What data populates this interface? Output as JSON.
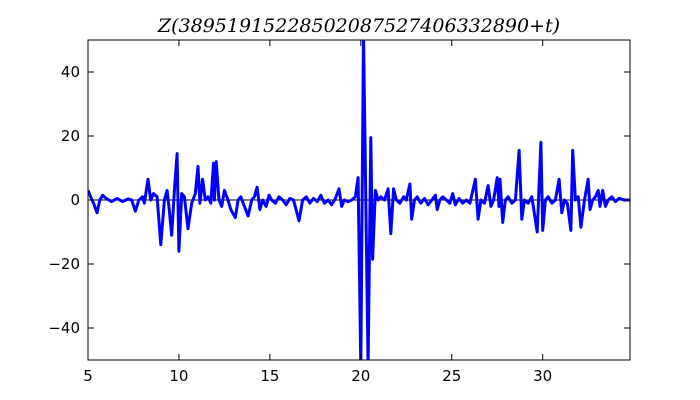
{
  "chart_data": {
    "type": "line",
    "title": "Z(389519152285020875274063328​90 + t)",
    "title_text": "Z(38951915228502087527406332890+t)",
    "xlabel": "",
    "ylabel": "",
    "xlim": [
      5,
      34.8
    ],
    "ylim": [
      -50,
      50
    ],
    "xticks": [
      5,
      10,
      15,
      20,
      25,
      30
    ],
    "yticks": [
      -40,
      -20,
      0,
      20,
      40
    ],
    "xtick_labels": [
      "5",
      "10",
      "15",
      "20",
      "25",
      "30"
    ],
    "ytick_labels": [
      "−40",
      "−20",
      "0",
      "20",
      "40"
    ],
    "grid": false,
    "zero_line": true,
    "colors": {
      "line": "#0000ff",
      "zero_line": "#000000"
    },
    "series": [
      {
        "points": [
          [
            5.0,
            3
          ],
          [
            5.15,
            1
          ],
          [
            5.3,
            -1
          ],
          [
            5.5,
            -4
          ],
          [
            5.65,
            0
          ],
          [
            5.8,
            1.5
          ],
          [
            6.0,
            0.5
          ],
          [
            6.3,
            -0.5
          ],
          [
            6.6,
            0.5
          ],
          [
            6.9,
            -0.5
          ],
          [
            7.2,
            0.3
          ],
          [
            7.4,
            0
          ],
          [
            7.6,
            -3.5
          ],
          [
            7.8,
            0
          ],
          [
            8.0,
            1
          ],
          [
            8.1,
            -1
          ],
          [
            8.3,
            6.5
          ],
          [
            8.45,
            0
          ],
          [
            8.6,
            2
          ],
          [
            8.8,
            1
          ],
          [
            9.0,
            -14
          ],
          [
            9.2,
            0
          ],
          [
            9.35,
            3
          ],
          [
            9.45,
            -2
          ],
          [
            9.6,
            -11
          ],
          [
            9.75,
            3
          ],
          [
            9.9,
            14.5
          ],
          [
            10.0,
            -16
          ],
          [
            10.15,
            2
          ],
          [
            10.3,
            1
          ],
          [
            10.5,
            -9
          ],
          [
            10.7,
            -1
          ],
          [
            10.9,
            2
          ],
          [
            11.05,
            10.5
          ],
          [
            11.15,
            -1
          ],
          [
            11.3,
            6.5
          ],
          [
            11.45,
            0
          ],
          [
            11.6,
            1
          ],
          [
            11.75,
            -1
          ],
          [
            11.9,
            11.5
          ],
          [
            11.95,
            0
          ],
          [
            12.05,
            12
          ],
          [
            12.2,
            0
          ],
          [
            12.35,
            -2
          ],
          [
            12.5,
            3
          ],
          [
            12.7,
            0
          ],
          [
            12.85,
            -3
          ],
          [
            13.1,
            -5.5
          ],
          [
            13.25,
            0
          ],
          [
            13.4,
            1
          ],
          [
            13.6,
            -2
          ],
          [
            13.8,
            -5
          ],
          [
            14.0,
            0
          ],
          [
            14.15,
            1
          ],
          [
            14.3,
            4
          ],
          [
            14.45,
            -3
          ],
          [
            14.6,
            0
          ],
          [
            14.8,
            -2
          ],
          [
            14.95,
            1.5
          ],
          [
            15.1,
            0
          ],
          [
            15.3,
            -1
          ],
          [
            15.5,
            1
          ],
          [
            15.7,
            0
          ],
          [
            15.9,
            -1.5
          ],
          [
            16.1,
            0.5
          ],
          [
            16.3,
            0
          ],
          [
            16.6,
            -6.5
          ],
          [
            16.8,
            0
          ],
          [
            17.0,
            1
          ],
          [
            17.2,
            -1
          ],
          [
            17.4,
            0.5
          ],
          [
            17.6,
            -0.5
          ],
          [
            17.8,
            1.5
          ],
          [
            18.0,
            -1
          ],
          [
            18.2,
            0
          ],
          [
            18.4,
            -1.5
          ],
          [
            18.6,
            0.5
          ],
          [
            18.8,
            3.5
          ],
          [
            18.95,
            -2
          ],
          [
            19.1,
            0
          ],
          [
            19.3,
            -0.5
          ],
          [
            19.5,
            0
          ],
          [
            19.7,
            1
          ],
          [
            19.85,
            7
          ],
          [
            20.0,
            -80
          ],
          [
            20.15,
            80
          ],
          [
            20.4,
            -80
          ],
          [
            20.55,
            19.5
          ],
          [
            20.65,
            -18.5
          ],
          [
            20.8,
            3
          ],
          [
            20.95,
            0
          ],
          [
            21.1,
            1
          ],
          [
            21.3,
            0
          ],
          [
            21.5,
            3.5
          ],
          [
            21.65,
            -10.5
          ],
          [
            21.8,
            3.5
          ],
          [
            21.95,
            0
          ],
          [
            22.15,
            -1
          ],
          [
            22.35,
            1
          ],
          [
            22.5,
            0
          ],
          [
            22.7,
            5
          ],
          [
            22.8,
            -6
          ],
          [
            22.95,
            0
          ],
          [
            23.1,
            1
          ],
          [
            23.3,
            -1
          ],
          [
            23.5,
            0.5
          ],
          [
            23.7,
            -1.5
          ],
          [
            23.9,
            0
          ],
          [
            24.1,
            1.5
          ],
          [
            24.2,
            -3
          ],
          [
            24.35,
            0
          ],
          [
            24.5,
            1
          ],
          [
            24.7,
            0
          ],
          [
            24.9,
            -1
          ],
          [
            25.05,
            2
          ],
          [
            25.2,
            -1.5
          ],
          [
            25.4,
            0.5
          ],
          [
            25.6,
            -1
          ],
          [
            25.8,
            0
          ],
          [
            26.0,
            -1
          ],
          [
            26.3,
            6.5
          ],
          [
            26.45,
            -6
          ],
          [
            26.6,
            0
          ],
          [
            26.8,
            -1
          ],
          [
            27.0,
            4.5
          ],
          [
            27.15,
            -2
          ],
          [
            27.3,
            0
          ],
          [
            27.5,
            7
          ],
          [
            27.6,
            -2
          ],
          [
            27.65,
            6.5
          ],
          [
            27.8,
            -7
          ],
          [
            27.95,
            0
          ],
          [
            28.1,
            1
          ],
          [
            28.3,
            -1
          ],
          [
            28.5,
            0
          ],
          [
            28.7,
            15.5
          ],
          [
            28.85,
            -6
          ],
          [
            29.0,
            0
          ],
          [
            29.2,
            -1
          ],
          [
            29.4,
            1
          ],
          [
            29.7,
            -10
          ],
          [
            29.9,
            18
          ],
          [
            30.0,
            -9.5
          ],
          [
            30.15,
            0
          ],
          [
            30.3,
            1
          ],
          [
            30.5,
            -1
          ],
          [
            30.7,
            0
          ],
          [
            30.9,
            6.5
          ],
          [
            31.05,
            -4
          ],
          [
            31.2,
            0
          ],
          [
            31.35,
            -1
          ],
          [
            31.55,
            -9.5
          ],
          [
            31.65,
            15.5
          ],
          [
            31.8,
            0
          ],
          [
            31.95,
            1
          ],
          [
            32.1,
            -8.5
          ],
          [
            32.3,
            0
          ],
          [
            32.5,
            6.5
          ],
          [
            32.6,
            -3
          ],
          [
            32.75,
            0
          ],
          [
            32.9,
            1
          ],
          [
            33.05,
            3
          ],
          [
            33.15,
            -2
          ],
          [
            33.3,
            3
          ],
          [
            33.45,
            -2
          ],
          [
            33.6,
            0
          ],
          [
            33.8,
            1
          ],
          [
            34.0,
            -0.5
          ],
          [
            34.2,
            0.5
          ],
          [
            34.5,
            0
          ],
          [
            34.8,
            0
          ]
        ]
      }
    ]
  }
}
